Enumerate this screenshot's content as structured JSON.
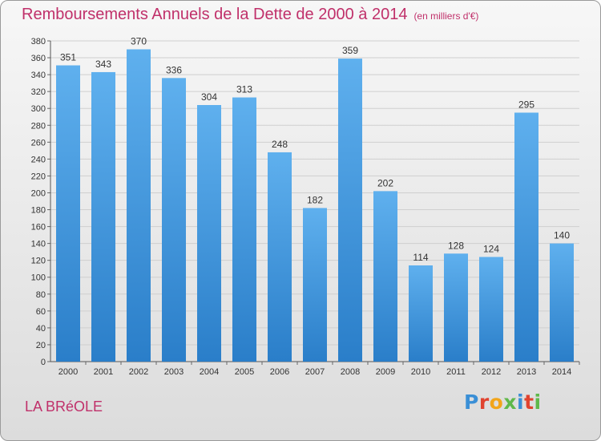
{
  "title": "Remboursements Annuels de la Dette de 2000 à 2014",
  "unit": "(en milliers d'€)",
  "commune": "LA BRéOLE",
  "logo": "Proxiti",
  "colors": {
    "title": "#c0306a",
    "bar_light": "#5fb0ee",
    "bar_dark": "#2a7ec9",
    "grid": "#cfcfcf"
  },
  "chart_data": {
    "type": "bar",
    "title": "Remboursements Annuels de la Dette de 2000 à 2014",
    "xlabel": "",
    "ylabel": "(en milliers d'€)",
    "categories": [
      "2000",
      "2001",
      "2002",
      "2003",
      "2004",
      "2005",
      "2006",
      "2007",
      "2008",
      "2009",
      "2010",
      "2011",
      "2012",
      "2013",
      "2014"
    ],
    "values": [
      351,
      343,
      370,
      336,
      304,
      313,
      248,
      182,
      359,
      202,
      114,
      128,
      124,
      295,
      140
    ],
    "ylim": [
      0,
      380
    ],
    "ytick_step": 20,
    "grid": true
  }
}
